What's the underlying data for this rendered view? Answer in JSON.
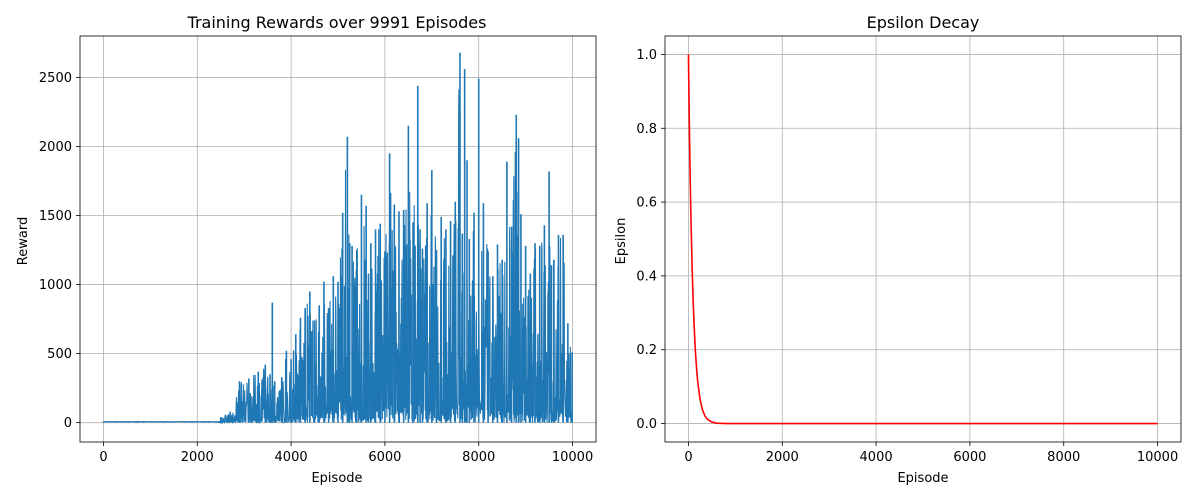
{
  "chart_data": [
    {
      "type": "line",
      "title": "Training Rewards over 9991 Episodes",
      "xlabel": "Episode",
      "ylabel": "Reward",
      "xlim": [
        -500,
        10500
      ],
      "ylim": [
        -140,
        2800
      ],
      "x_ticks": [
        0,
        2000,
        4000,
        6000,
        8000,
        10000
      ],
      "y_ticks": [
        0,
        500,
        1000,
        1500,
        2000,
        2500
      ],
      "grid": true,
      "color": "#1f77b4",
      "episodes": 9991,
      "envelope": {
        "x": [
          0,
          2400,
          2500,
          2700,
          2900,
          3100,
          3300,
          3450,
          3550,
          3600,
          3650,
          3800,
          3900,
          4000,
          4100,
          4200,
          4300,
          4400,
          4500,
          4600,
          4700,
          4800,
          4900,
          5000,
          5100,
          5200,
          5250,
          5300,
          5400,
          5500,
          5600,
          5650,
          5700,
          5800,
          5900,
          6000,
          6100,
          6200,
          6300,
          6400,
          6500,
          6600,
          6700,
          6750,
          6800,
          6900,
          7000,
          7100,
          7200,
          7300,
          7400,
          7500,
          7600,
          7650,
          7700,
          7750,
          7800,
          7900,
          8000,
          8100,
          8200,
          8300,
          8400,
          8500,
          8600,
          8700,
          8800,
          8850,
          8900,
          9000,
          9100,
          9200,
          9300,
          9400,
          9500,
          9550,
          9600,
          9700,
          9800,
          9900,
          9991
        ],
        "peak": [
          5,
          5,
          40,
          80,
          300,
          320,
          370,
          420,
          350,
          870,
          300,
          330,
          520,
          460,
          640,
          760,
          830,
          950,
          740,
          850,
          1020,
          830,
          1060,
          1020,
          1520,
          2070,
          1300,
          1280,
          1250,
          1650,
          1570,
          1080,
          1300,
          1400,
          1440,
          1240,
          1950,
          1580,
          1530,
          1540,
          2150,
          1450,
          2440,
          1400,
          1260,
          1590,
          1830,
          1250,
          1490,
          1400,
          1460,
          1600,
          2680,
          1370,
          2560,
          1900,
          1330,
          1520,
          2490,
          1590,
          1240,
          1060,
          1290,
          1180,
          1890,
          1420,
          2230,
          2060,
          1510,
          1280,
          1080,
          1300,
          1280,
          1430,
          1820,
          1140,
          1180,
          1360,
          1360,
          720,
          510
        ]
      }
    },
    {
      "type": "line",
      "title": "Epsilon Decay",
      "xlabel": "Episode",
      "ylabel": "Epsilon",
      "xlim": [
        -500,
        10500
      ],
      "ylim": [
        -0.05,
        1.05
      ],
      "x_ticks": [
        0,
        2000,
        4000,
        6000,
        8000,
        10000
      ],
      "y_ticks": [
        0.0,
        0.2,
        0.4,
        0.6,
        0.8,
        1.0
      ],
      "grid": true,
      "color": "#ff0000",
      "series": {
        "x": [
          0,
          10,
          20,
          30,
          40,
          50,
          60,
          80,
          100,
          120,
          150,
          180,
          200,
          250,
          300,
          350,
          400,
          500,
          600,
          800,
          1000,
          10000
        ],
        "y": [
          1.0,
          0.896,
          0.802,
          0.719,
          0.644,
          0.577,
          0.517,
          0.415,
          0.333,
          0.267,
          0.192,
          0.138,
          0.111,
          0.064,
          0.037,
          0.021,
          0.012,
          0.004,
          0.001,
          0.0,
          0.0,
          0.0
        ]
      }
    }
  ]
}
